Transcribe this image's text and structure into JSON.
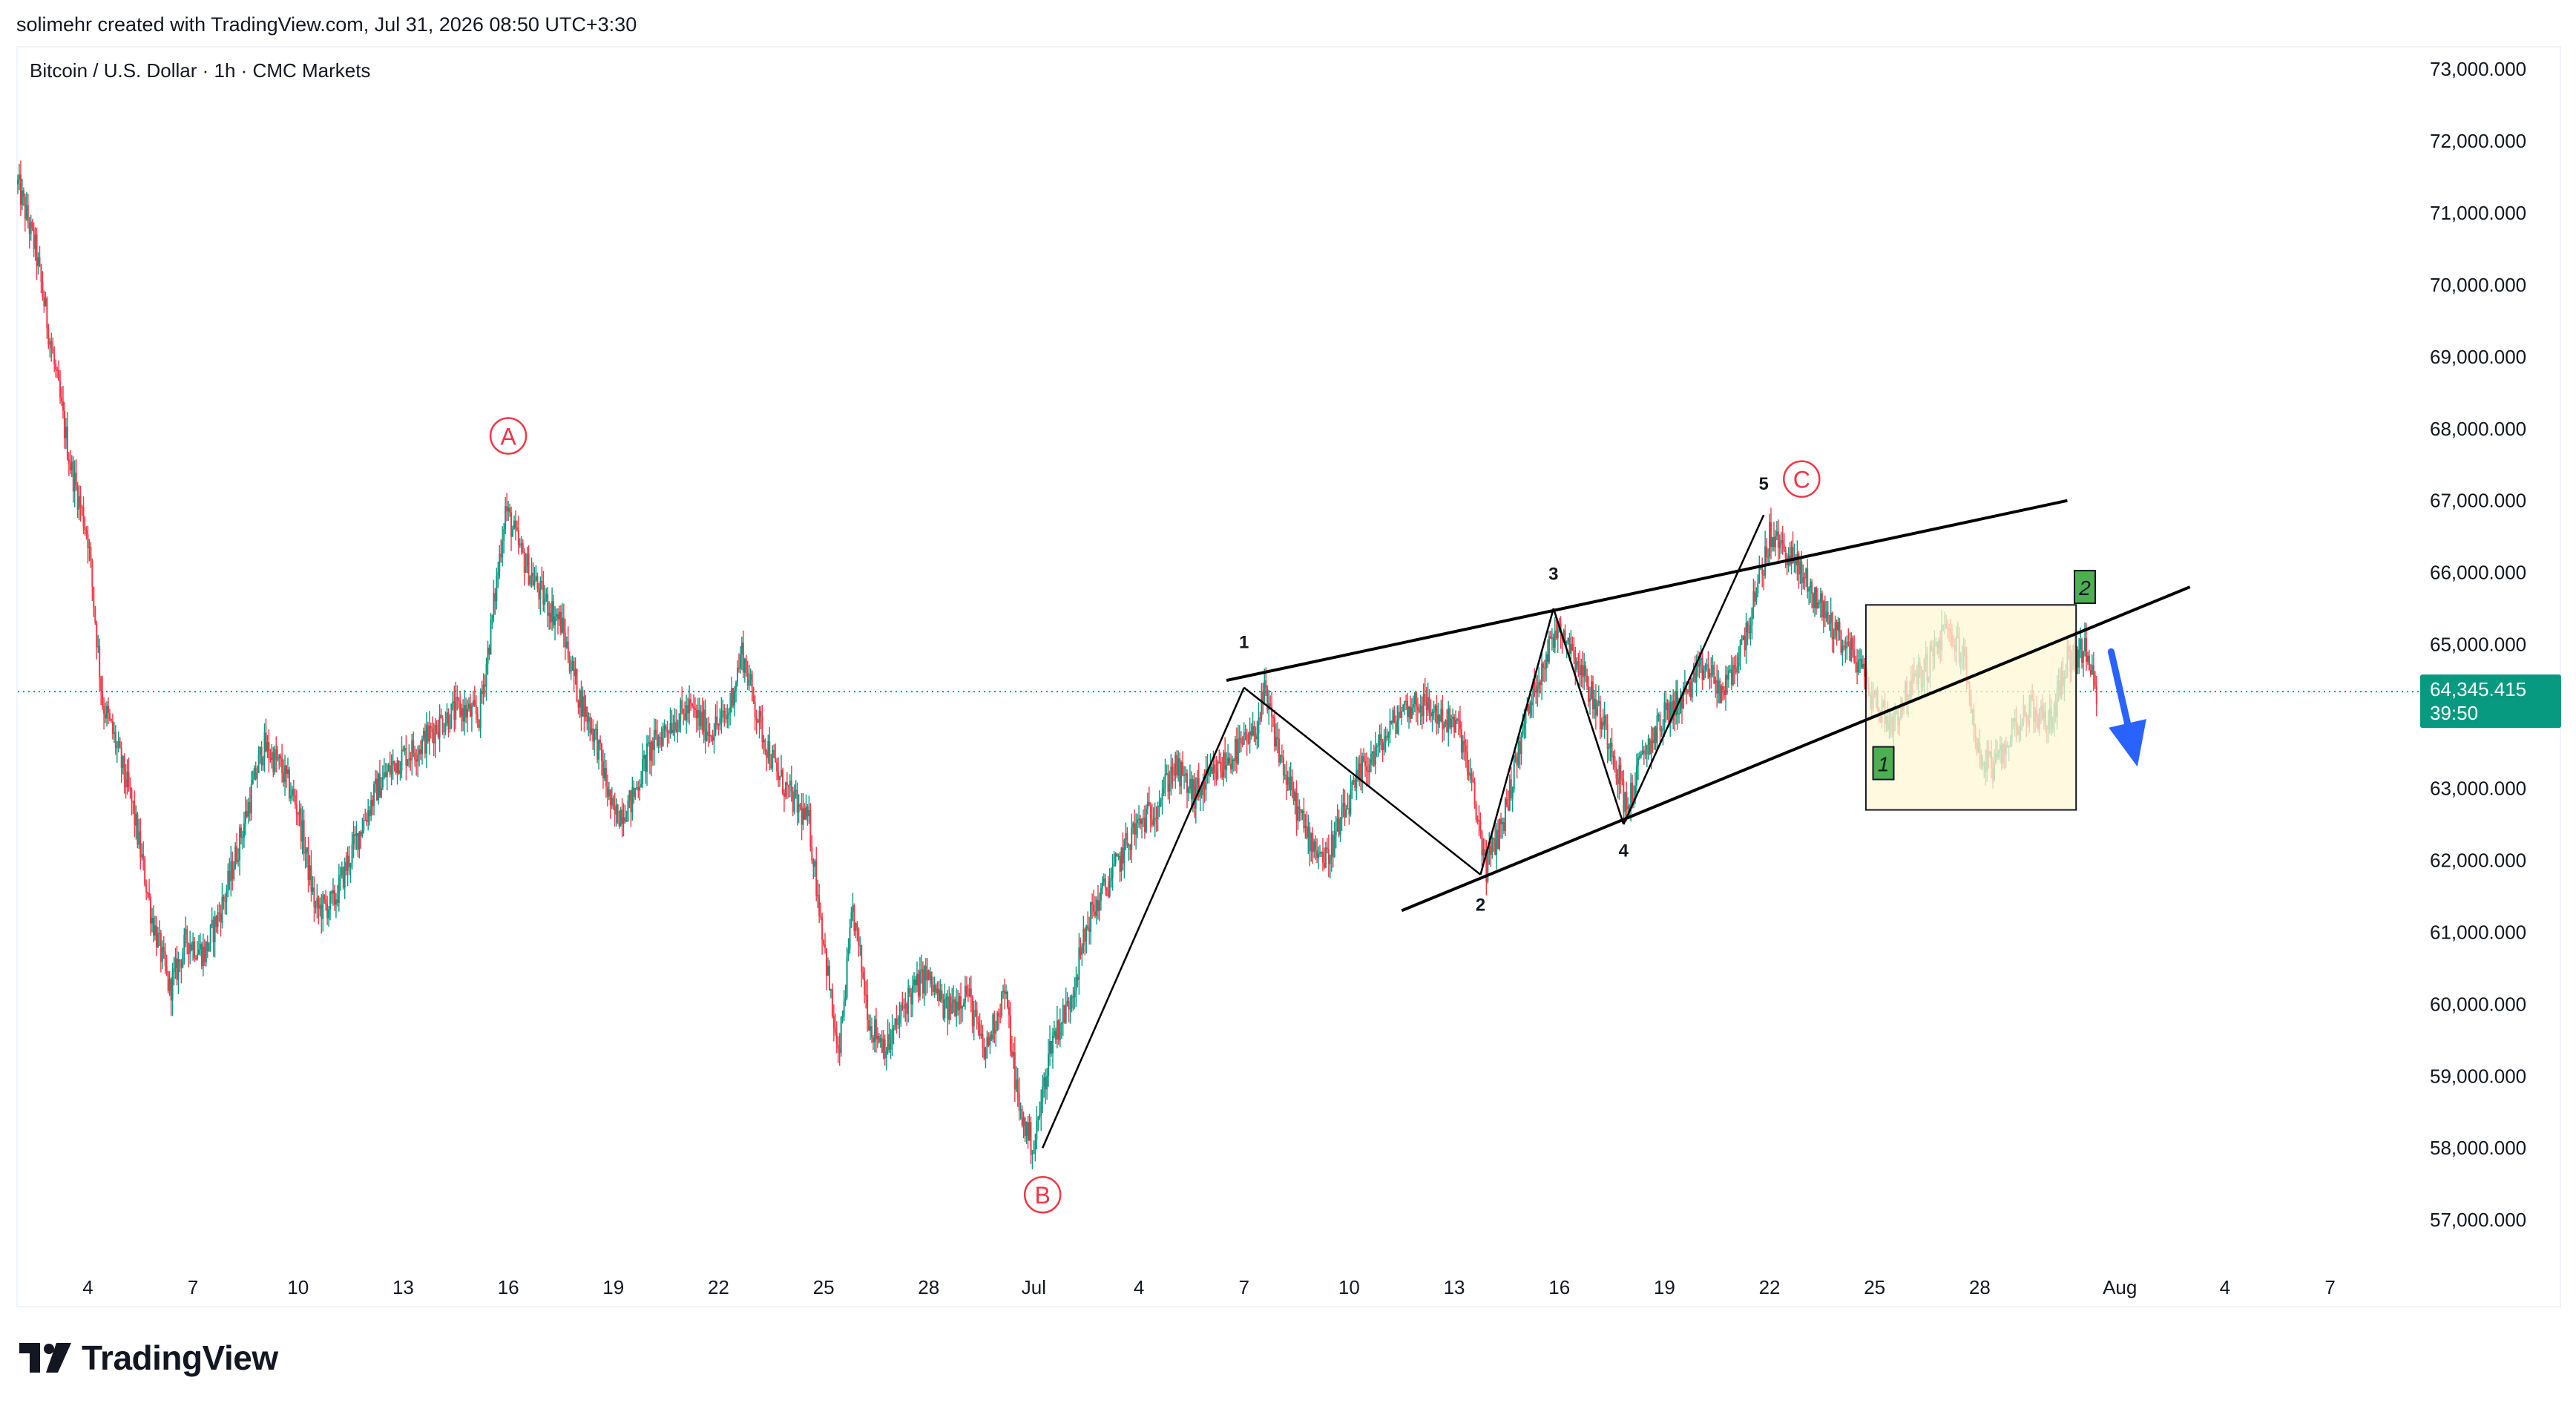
{
  "header": {
    "attribution": "solimehr created with TradingView.com, Jul 31, 2026 08:50 UTC+3:30",
    "symbol_title": "Bitcoin / U.S. Dollar · 1h · CMC Markets"
  },
  "footer": {
    "brand": "TradingView",
    "logo_icon": "tradingview-logo-icon"
  },
  "colors": {
    "up": "#089981",
    "down": "#f23645",
    "grid_line": "#f0f3fa",
    "price_badge": "#089981",
    "wave_abc": "#f23645",
    "box_fill": "#fff8d4",
    "box_border": "#131722",
    "marker_green": "#4caf50",
    "arrow": "#2962ff",
    "axis_text": "#131722",
    "dotted_price": "#089981"
  },
  "chart_data": {
    "type": "candlestick",
    "title": "Bitcoin / U.S. Dollar · 1h · CMC Markets",
    "ylim": [
      56300,
      73300
    ],
    "xlim": [
      "2026-06-02",
      "2026-08-09"
    ],
    "y_ticks": [
      "73,000.000",
      "72,000.000",
      "71,000.000",
      "70,000.000",
      "69,000.000",
      "68,000.000",
      "67,000.000",
      "66,000.000",
      "65,000.000",
      "63,000.000",
      "62,000.000",
      "61,000.000",
      "60,000.000",
      "59,000.000",
      "58,000.000",
      "57,000.000"
    ],
    "y_tick_values": [
      73000,
      72000,
      71000,
      70000,
      69000,
      68000,
      67000,
      66000,
      65000,
      63000,
      62000,
      61000,
      60000,
      59000,
      58000,
      57000
    ],
    "x_ticks": [
      {
        "label": "4",
        "date": "2026-06-04"
      },
      {
        "label": "7",
        "date": "2026-06-07"
      },
      {
        "label": "10",
        "date": "2026-06-10"
      },
      {
        "label": "13",
        "date": "2026-06-13"
      },
      {
        "label": "16",
        "date": "2026-06-16"
      },
      {
        "label": "19",
        "date": "2026-06-19"
      },
      {
        "label": "22",
        "date": "2026-06-22"
      },
      {
        "label": "25",
        "date": "2026-06-25"
      },
      {
        "label": "28",
        "date": "2026-06-28"
      },
      {
        "label": "Jul",
        "date": "2026-07-01"
      },
      {
        "label": "4",
        "date": "2026-07-04"
      },
      {
        "label": "7",
        "date": "2026-07-07"
      },
      {
        "label": "10",
        "date": "2026-07-10"
      },
      {
        "label": "13",
        "date": "2026-07-13"
      },
      {
        "label": "16",
        "date": "2026-07-16"
      },
      {
        "label": "19",
        "date": "2026-07-19"
      },
      {
        "label": "22",
        "date": "2026-07-22"
      },
      {
        "label": "25",
        "date": "2026-07-25"
      },
      {
        "label": "28",
        "date": "2026-07-28"
      },
      {
        "label": "Aug",
        "date": "2026-08-01"
      },
      {
        "label": "4",
        "date": "2026-08-04"
      },
      {
        "label": "7",
        "date": "2026-08-07"
      }
    ],
    "price_path": [
      [
        "2026-06-02 00:00",
        71400
      ],
      [
        "2026-06-02 12:00",
        70500
      ],
      [
        "2026-06-03 00:00",
        69000
      ],
      [
        "2026-06-03 12:00",
        67500
      ],
      [
        "2026-06-04 00:00",
        66500
      ],
      [
        "2026-06-04 10:00",
        64200
      ],
      [
        "2026-06-04 18:00",
        63700
      ],
      [
        "2026-06-05 06:00",
        62800
      ],
      [
        "2026-06-05 20:00",
        61200
      ],
      [
        "2026-06-06 08:00",
        60200
      ],
      [
        "2026-06-06 20:00",
        60900
      ],
      [
        "2026-06-07 08:00",
        60700
      ],
      [
        "2026-06-07 22:00",
        61500
      ],
      [
        "2026-06-08 12:00",
        62600
      ],
      [
        "2026-06-09 00:00",
        63600
      ],
      [
        "2026-06-09 12:00",
        63300
      ],
      [
        "2026-06-10 00:00",
        62700
      ],
      [
        "2026-06-10 12:00",
        61300
      ],
      [
        "2026-06-11 00:00",
        61400
      ],
      [
        "2026-06-11 16:00",
        62300
      ],
      [
        "2026-06-12 06:00",
        63000
      ],
      [
        "2026-06-12 20:00",
        63400
      ],
      [
        "2026-06-13 12:00",
        63600
      ],
      [
        "2026-06-14 00:00",
        63900
      ],
      [
        "2026-06-14 14:00",
        64100
      ],
      [
        "2026-06-15 04:00",
        64000
      ],
      [
        "2026-06-15 12:00",
        65200
      ],
      [
        "2026-06-15 22:00",
        66900
      ],
      [
        "2026-06-16 08:00",
        66300
      ],
      [
        "2026-06-16 22:00",
        65700
      ],
      [
        "2026-06-17 12:00",
        65300
      ],
      [
        "2026-06-18 00:00",
        64300
      ],
      [
        "2026-06-18 12:00",
        63700
      ],
      [
        "2026-06-19 00:00",
        62600
      ],
      [
        "2026-06-19 12:00",
        62800
      ],
      [
        "2026-06-20 00:00",
        63500
      ],
      [
        "2026-06-20 14:00",
        63900
      ],
      [
        "2026-06-21 04:00",
        64100
      ],
      [
        "2026-06-21 18:00",
        63800
      ],
      [
        "2026-06-22 06:00",
        64000
      ],
      [
        "2026-06-22 16:00",
        64900
      ],
      [
        "2026-06-23 04:00",
        63900
      ],
      [
        "2026-06-23 16:00",
        63200
      ],
      [
        "2026-06-24 04:00",
        62800
      ],
      [
        "2026-06-24 14:00",
        62500
      ],
      [
        "2026-06-25 00:00",
        60900
      ],
      [
        "2026-06-25 10:00",
        59200
      ],
      [
        "2026-06-25 20:00",
        61300
      ],
      [
        "2026-06-26 08:00",
        59700
      ],
      [
        "2026-06-26 20:00",
        59400
      ],
      [
        "2026-06-27 10:00",
        60100
      ],
      [
        "2026-06-27 22:00",
        60400
      ],
      [
        "2026-06-28 12:00",
        59900
      ],
      [
        "2026-06-29 02:00",
        60200
      ],
      [
        "2026-06-29 14:00",
        59300
      ],
      [
        "2026-06-30 04:00",
        60200
      ],
      [
        "2026-06-30 14:00",
        58500
      ],
      [
        "2026-07-01 00:00",
        58000
      ],
      [
        "2026-07-01 12:00",
        59500
      ],
      [
        "2026-07-02 00:00",
        60000
      ],
      [
        "2026-07-02 14:00",
        61200
      ],
      [
        "2026-07-03 06:00",
        61800
      ],
      [
        "2026-07-03 20:00",
        62400
      ],
      [
        "2026-07-04 10:00",
        62700
      ],
      [
        "2026-07-05 00:00",
        63300
      ],
      [
        "2026-07-05 14:00",
        62900
      ],
      [
        "2026-07-06 04:00",
        63200
      ],
      [
        "2026-07-06 18:00",
        63500
      ],
      [
        "2026-07-07 06:00",
        63700
      ],
      [
        "2026-07-07 14:00",
        64300
      ],
      [
        "2026-07-08 04:00",
        63200
      ],
      [
        "2026-07-08 18:00",
        62400
      ],
      [
        "2026-07-09 08:00",
        62000
      ],
      [
        "2026-07-09 20:00",
        62600
      ],
      [
        "2026-07-10 10:00",
        63300
      ],
      [
        "2026-07-10 22:00",
        63600
      ],
      [
        "2026-07-11 12:00",
        64100
      ],
      [
        "2026-07-12 00:00",
        64200
      ],
      [
        "2026-07-12 14:00",
        64000
      ],
      [
        "2026-07-13 04:00",
        63800
      ],
      [
        "2026-07-13 14:00",
        62800
      ],
      [
        "2026-07-13 22:00",
        61900
      ],
      [
        "2026-07-14 10:00",
        62600
      ],
      [
        "2026-07-15 00:00",
        63900
      ],
      [
        "2026-07-15 12:00",
        64700
      ],
      [
        "2026-07-16 00:00",
        65300
      ],
      [
        "2026-07-16 12:00",
        64800
      ],
      [
        "2026-07-17 00:00",
        64200
      ],
      [
        "2026-07-17 12:00",
        63600
      ],
      [
        "2026-07-17 22:00",
        62700
      ],
      [
        "2026-07-18 10:00",
        63500
      ],
      [
        "2026-07-19 00:00",
        64000
      ],
      [
        "2026-07-19 14:00",
        64300
      ],
      [
        "2026-07-20 04:00",
        64700
      ],
      [
        "2026-07-20 16:00",
        64300
      ],
      [
        "2026-07-21 04:00",
        64900
      ],
      [
        "2026-07-21 14:00",
        65600
      ],
      [
        "2026-07-22 00:00",
        66500
      ],
      [
        "2026-07-22 12:00",
        66300
      ],
      [
        "2026-07-23 00:00",
        65900
      ],
      [
        "2026-07-23 12:00",
        65500
      ],
      [
        "2026-07-24 00:00",
        65100
      ],
      [
        "2026-07-24 12:00",
        64800
      ],
      [
        "2026-07-25 00:00",
        64200
      ],
      [
        "2026-07-25 12:00",
        63900
      ],
      [
        "2026-07-26 00:00",
        64400
      ],
      [
        "2026-07-26 12:00",
        64700
      ],
      [
        "2026-07-27 00:00",
        65200
      ],
      [
        "2026-07-27 12:00",
        64900
      ],
      [
        "2026-07-28 00:00",
        63400
      ],
      [
        "2026-07-28 12:00",
        63300
      ],
      [
        "2026-07-29 00:00",
        63900
      ],
      [
        "2026-07-29 12:00",
        64100
      ],
      [
        "2026-07-30 00:00",
        63900
      ],
      [
        "2026-07-30 12:00",
        64800
      ],
      [
        "2026-07-31 00:00",
        64900
      ],
      [
        "2026-07-31 08:00",
        64345
      ]
    ],
    "current_price": {
      "label": "64,345.415",
      "countdown": "39:50",
      "value": 64345.415
    },
    "wave_lines": [
      {
        "from": [
          "2026-07-01 06:00",
          58000
        ],
        "to": [
          "2026-07-07 00:00",
          64400
        ]
      },
      {
        "from": [
          "2026-07-07 00:00",
          64400
        ],
        "to": [
          "2026-07-13 18:00",
          61800
        ]
      },
      {
        "from": [
          "2026-07-13 18:00",
          61800
        ],
        "to": [
          "2026-07-15 20:00",
          65500
        ]
      },
      {
        "from": [
          "2026-07-15 20:00",
          65500
        ],
        "to": [
          "2026-07-17 20:00",
          62500
        ]
      },
      {
        "from": [
          "2026-07-17 20:00",
          62500
        ],
        "to": [
          "2026-07-21 20:00",
          66800
        ]
      }
    ],
    "trend_lines": [
      {
        "from": [
          "2026-07-06 12:00",
          64500
        ],
        "to": [
          "2026-07-30 12:00",
          67000
        ]
      },
      {
        "from": [
          "2026-07-11 12:00",
          61300
        ],
        "to": [
          "2026-08-03 00:00",
          65800
        ]
      }
    ],
    "wave_labels": [
      {
        "text": "1",
        "at": [
          "2026-07-07 00:00",
          64950
        ]
      },
      {
        "text": "2",
        "at": [
          "2026-07-13 18:00",
          61300
        ]
      },
      {
        "text": "3",
        "at": [
          "2026-07-15 20:00",
          65900
        ]
      },
      {
        "text": "4",
        "at": [
          "2026-07-17 20:00",
          62050
        ]
      },
      {
        "text": "5",
        "at": [
          "2026-07-21 20:00",
          67150
        ]
      }
    ],
    "abc_labels": [
      {
        "text": "A",
        "at": [
          "2026-06-16 00:00",
          67900
        ]
      },
      {
        "text": "B",
        "at": [
          "2026-07-01 06:00",
          57350
        ]
      },
      {
        "text": "C",
        "at": [
          "2026-07-22 22:00",
          67300
        ]
      }
    ],
    "box": {
      "x0": "2026-07-24 18:00",
      "x1": "2026-07-30 18:00",
      "y_top": 65550,
      "y_bottom": 62700
    },
    "box_markers": [
      {
        "text": "1",
        "at": [
          "2026-07-25 06:00",
          63350
        ]
      },
      {
        "text": "2",
        "at": [
          "2026-07-31 00:00",
          65800
        ]
      }
    ],
    "arrow": {
      "from": [
        "2026-07-31 18:00",
        64900
      ],
      "to": [
        "2026-08-01 12:00",
        63300
      ]
    }
  }
}
